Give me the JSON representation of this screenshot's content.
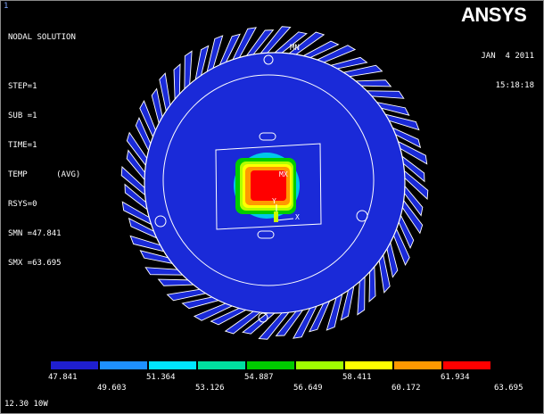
{
  "window_number": "1",
  "result_info": [
    "NODAL SOLUTION",
    "",
    "STEP=1",
    "SUB =1",
    "TIME=1",
    "TEMP      (AVG)",
    "RSYS=0",
    "SMN =47.841",
    "SMX =63.695"
  ],
  "brand": {
    "logo_text": "ANSYS",
    "color": "#ffffff"
  },
  "datetime": {
    "date": "JAN  4 2011",
    "time": "15:18:18"
  },
  "model_labels": {
    "mn": "MN",
    "mx": "MX",
    "axis_y": "Y",
    "axis_x": "X"
  },
  "legend": {
    "colors": [
      "#1f1fcf",
      "#1e90ff",
      "#00e5ff",
      "#00e0a0",
      "#00cc00",
      "#a0ff00",
      "#ffff00",
      "#ff9900",
      "#ff0000"
    ],
    "top_labels": [
      "47.841",
      "51.364",
      "54.887",
      "58.411",
      "61.934"
    ],
    "bottom_labels": [
      "49.603",
      "53.126",
      "56.649",
      "60.172",
      "63.695"
    ]
  },
  "footer_text": "12.30 10W"
}
